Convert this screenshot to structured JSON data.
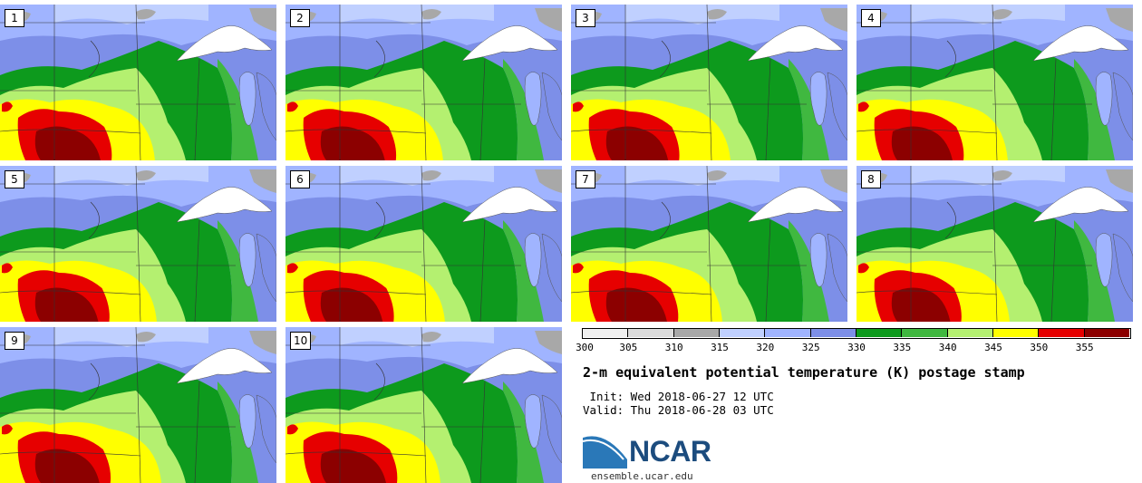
{
  "panels": [
    {
      "label": "1",
      "warm": 1.0
    },
    {
      "label": "2",
      "warm": 0.95
    },
    {
      "label": "3",
      "warm": 0.85
    },
    {
      "label": "4",
      "warm": 0.8
    },
    {
      "label": "5",
      "warm": 0.9
    },
    {
      "label": "6",
      "warm": 0.85
    },
    {
      "label": "7",
      "warm": 0.8
    },
    {
      "label": "8",
      "warm": 0.7
    },
    {
      "label": "9",
      "warm": 0.95
    },
    {
      "label": "10",
      "warm": 1.0
    }
  ],
  "colorbar": {
    "ticks": [
      "300",
      "305",
      "310",
      "315",
      "320",
      "325",
      "330",
      "335",
      "340",
      "345",
      "350",
      "355"
    ],
    "colors": [
      "#f0f0f0",
      "#dcdcdc",
      "#a8a8a8",
      "#c0d0ff",
      "#a0b4ff",
      "#7d8fe8",
      "#0d9a1d",
      "#40b840",
      "#b4f070",
      "#ffff00",
      "#e60000",
      "#8c0000"
    ]
  },
  "title": "2-m equivalent potential temperature (K) postage stamp",
  "init": " Init: Wed 2018-06-27 12 UTC",
  "valid": "Valid: Thu 2018-06-28 03 UTC",
  "logo": {
    "text": "NCAR",
    "color": "#1c4c7e",
    "swoosh_color": "#2a78b8"
  },
  "site": "ensemble.ucar.edu",
  "field_colors": {
    "cold_gray": "#a8a8a8",
    "light_blue": "#c0d0ff",
    "mid_blue": "#a0b4ff",
    "blue": "#7d8fe8",
    "dark_green": "#0d9a1d",
    "green": "#40b840",
    "light_green": "#b4f070",
    "yellow": "#ffff00",
    "red": "#e60000",
    "dark_red": "#8c0000",
    "lake": "#ffffff"
  }
}
